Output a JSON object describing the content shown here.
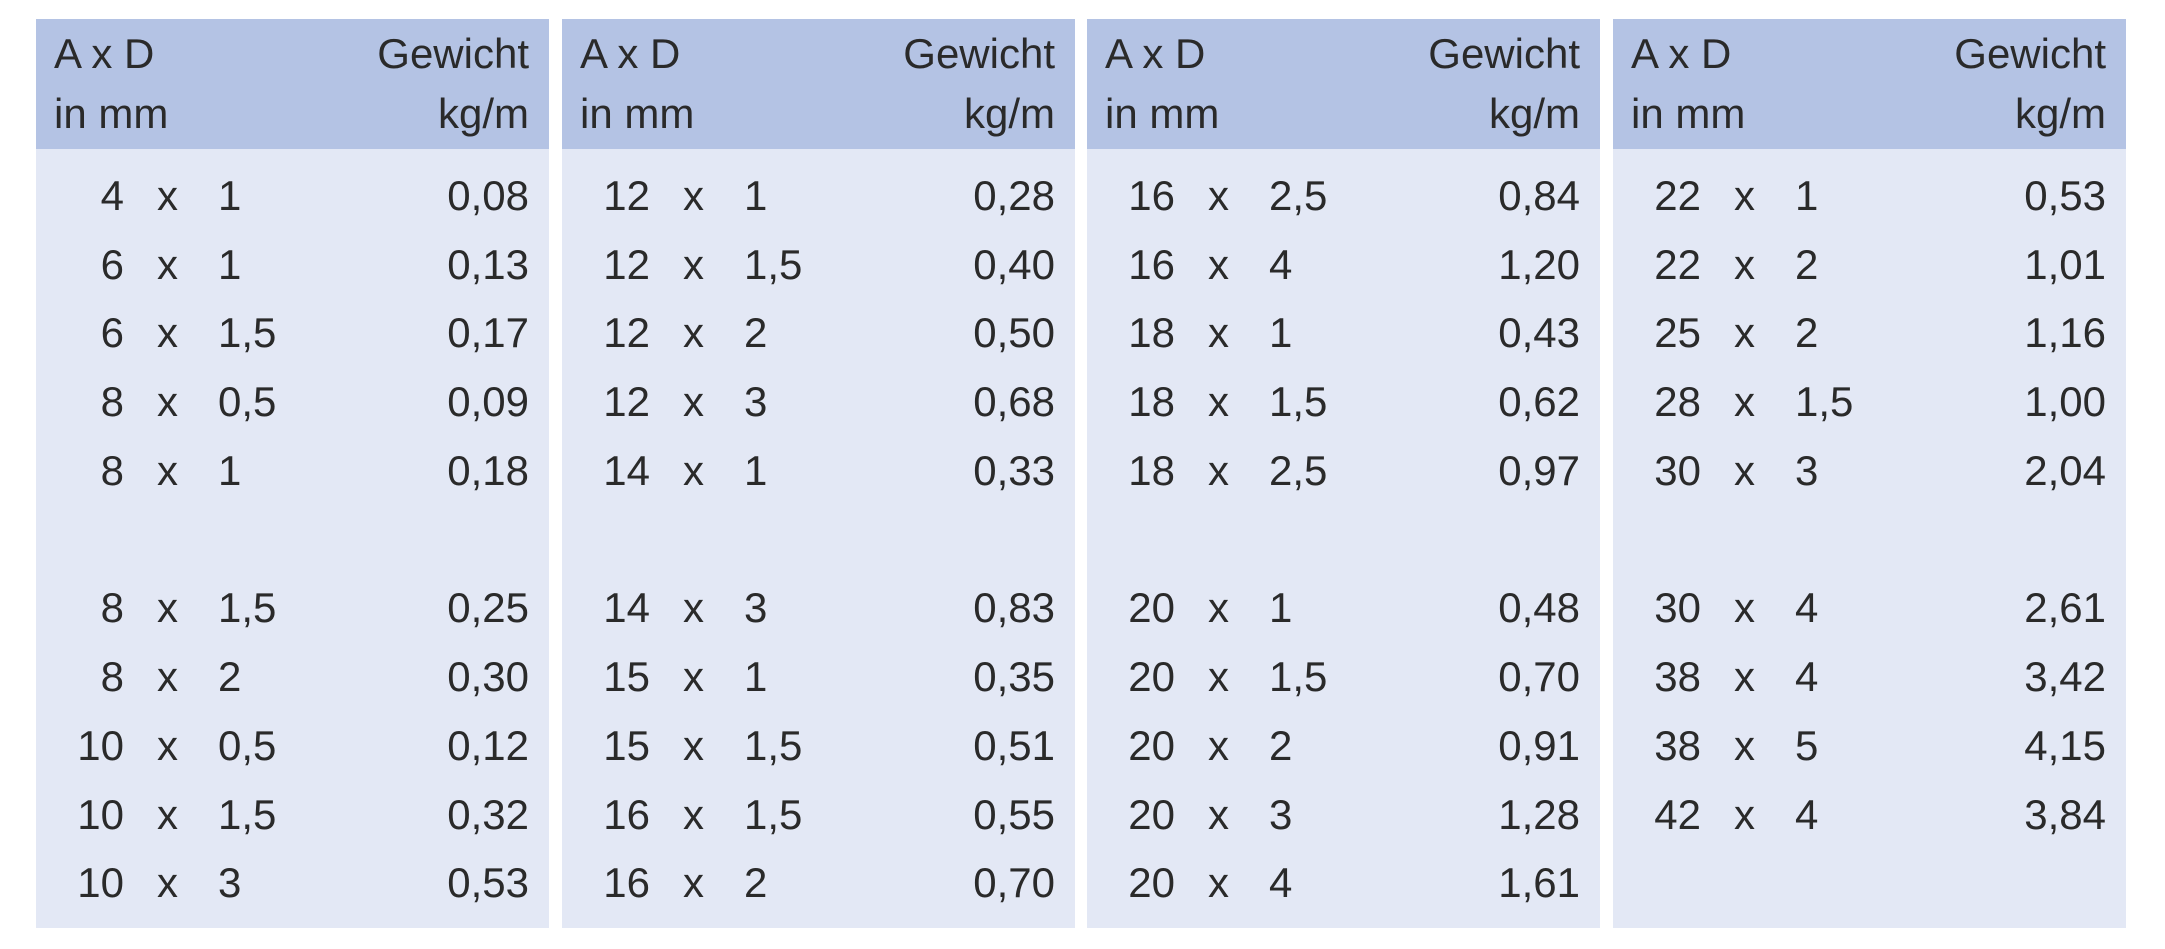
{
  "panels": [
    {
      "header": {
        "left": [
          "A x D",
          "in mm"
        ],
        "right": [
          "Gewicht",
          "kg/m"
        ]
      },
      "groups": [
        [
          [
            "4",
            "x",
            "1",
            "0,08"
          ],
          [
            "6",
            "x",
            "1",
            "0,13"
          ],
          [
            "6",
            "x",
            "1,5",
            "0,17"
          ],
          [
            "8",
            "x",
            "0,5",
            "0,09"
          ],
          [
            "8",
            "x",
            "1",
            "0,18"
          ]
        ],
        [
          [
            "8",
            "x",
            "1,5",
            "0,25"
          ],
          [
            "8",
            "x",
            "2",
            "0,30"
          ],
          [
            "10",
            "x",
            "0,5",
            "0,12"
          ],
          [
            "10",
            "x",
            "1,5",
            "0,32"
          ],
          [
            "10",
            "x",
            "3",
            "0,53"
          ]
        ]
      ]
    },
    {
      "header": {
        "left": [
          "A x D",
          "in mm"
        ],
        "right": [
          "Gewicht",
          "kg/m"
        ]
      },
      "groups": [
        [
          [
            "12",
            "x",
            "1",
            "0,28"
          ],
          [
            "12",
            "x",
            "1,5",
            "0,40"
          ],
          [
            "12",
            "x",
            "2",
            "0,50"
          ],
          [
            "12",
            "x",
            "3",
            "0,68"
          ],
          [
            "14",
            "x",
            "1",
            "0,33"
          ]
        ],
        [
          [
            "14",
            "x",
            "3",
            "0,83"
          ],
          [
            "15",
            "x",
            "1",
            "0,35"
          ],
          [
            "15",
            "x",
            "1,5",
            "0,51"
          ],
          [
            "16",
            "x",
            "1,5",
            "0,55"
          ],
          [
            "16",
            "x",
            "2",
            "0,70"
          ]
        ]
      ]
    },
    {
      "header": {
        "left": [
          "A x D",
          "in mm"
        ],
        "right": [
          "Gewicht",
          "kg/m"
        ]
      },
      "groups": [
        [
          [
            "16",
            "x",
            "2,5",
            "0,84"
          ],
          [
            "16",
            "x",
            "4",
            "1,20"
          ],
          [
            "18",
            "x",
            "1",
            "0,43"
          ],
          [
            "18",
            "x",
            "1,5",
            "0,62"
          ],
          [
            "18",
            "x",
            "2,5",
            "0,97"
          ]
        ],
        [
          [
            "20",
            "x",
            "1",
            "0,48"
          ],
          [
            "20",
            "x",
            "1,5",
            "0,70"
          ],
          [
            "20",
            "x",
            "2",
            "0,91"
          ],
          [
            "20",
            "x",
            "3",
            "1,28"
          ],
          [
            "20",
            "x",
            "4",
            "1,61"
          ]
        ]
      ]
    },
    {
      "header": {
        "left": [
          "A x D",
          "in mm"
        ],
        "right": [
          "Gewicht",
          "kg/m"
        ]
      },
      "groups": [
        [
          [
            "22",
            "x",
            "1",
            "0,53"
          ],
          [
            "22",
            "x",
            "2",
            "1,01"
          ],
          [
            "25",
            "x",
            "2",
            "1,16"
          ],
          [
            "28",
            "x",
            "1,5",
            "1,00"
          ],
          [
            "30",
            "x",
            "3",
            "2,04"
          ]
        ],
        [
          [
            "30",
            "x",
            "4",
            "2,61"
          ],
          [
            "38",
            "x",
            "4",
            "3,42"
          ],
          [
            "38",
            "x",
            "5",
            "4,15"
          ],
          [
            "42",
            "x",
            "4",
            "3,84"
          ]
        ]
      ]
    }
  ]
}
